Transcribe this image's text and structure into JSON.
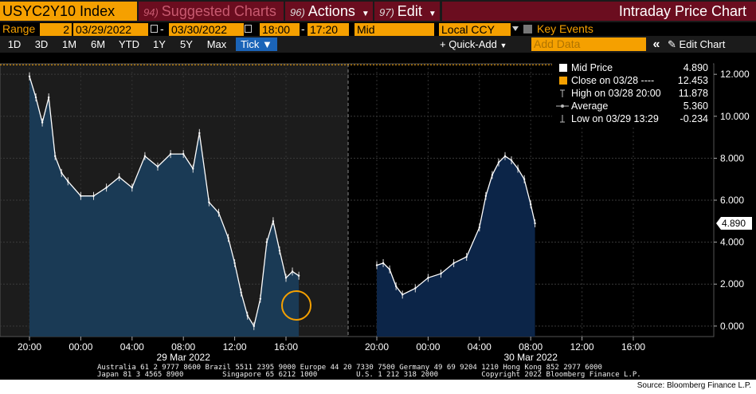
{
  "toolbar": {
    "ticker": "USYC2Y10 Index",
    "suggested": {
      "num": "94)",
      "label": "Suggested Charts"
    },
    "actions": {
      "num": "96)",
      "label": "Actions"
    },
    "edit": {
      "num": "97)",
      "label": "Edit"
    },
    "title": "Intraday Price Chart"
  },
  "range_row": {
    "range_label": "Range",
    "range_value": "2",
    "start_date": "03/29/2022",
    "dash": "-",
    "end_date": "03/30/2022",
    "start_time": "18:00",
    "end_time": "17:20",
    "field": "Mid",
    "currency": "Local CCY",
    "key_events": "Key Events"
  },
  "range_buttons": [
    "1D",
    "3D",
    "1M",
    "6M",
    "YTD",
    "1Y",
    "5Y",
    "Max"
  ],
  "tick_button": "Tick ▼",
  "quick_add": "+ Quick-Add",
  "add_data_placeholder": "Add Data",
  "collapse_icon": "«",
  "edit_chart": "Edit Chart",
  "legend": [
    {
      "label": "Mid Price",
      "value": "4.890",
      "color": "#ffffff"
    },
    {
      "label": "Close on 03/28 ---- ",
      "value": "12.453",
      "color": "#f5a000"
    },
    {
      "label": "High on 03/28 20:00",
      "value": "11.878",
      "icon": "high-marker-icon"
    },
    {
      "label": "Average",
      "value": "5.360",
      "icon": "average-marker-icon"
    },
    {
      "label": "Low on 03/29 13:29",
      "value": "-0.234",
      "icon": "low-marker-icon"
    }
  ],
  "current_price_label": "4.890",
  "footer": {
    "line1": "Australia 61 2 9777 8600 Brazil 5511 2395 9000 Europe 44 20 7330 7500 Germany 49 69 9204 1210 Hong Kong 852 2977 6000",
    "line2": "Japan 81 3 4565 8900         Singapore 65 6212 1000         U.S. 1 212 318 2000          Copyright 2022 Bloomberg Finance L.P.",
    "source": "Source: Bloomberg Finance L.P."
  },
  "chart_data": {
    "type": "line",
    "y_ticks": [
      "12.000",
      "10.000",
      "8.000",
      "6.000",
      "4.000",
      "2.000",
      "0.000"
    ],
    "ylim": [
      -0.5,
      12.5
    ],
    "x_ticks": [
      "20:00",
      "00:00",
      "04:00",
      "08:00",
      "12:00",
      "16:00",
      "20:00",
      "00:00",
      "04:00",
      "08:00",
      "12:00",
      "16:00"
    ],
    "date_labels": [
      "29 Mar 2022",
      "30 Mar 2022"
    ],
    "previous_close": 12.453,
    "series": [
      {
        "name": "Mid Price",
        "session": 1,
        "x": [
          "20:00",
          "20:30",
          "21:00",
          "21:30",
          "22:00",
          "22:30",
          "23:00",
          "00:00",
          "01:00",
          "02:00",
          "03:00",
          "04:00",
          "05:00",
          "06:00",
          "07:00",
          "08:00",
          "08:45",
          "09:15",
          "10:00",
          "10:45",
          "11:30",
          "12:00",
          "12:30",
          "13:00",
          "13:30",
          "14:00",
          "14:30",
          "15:00",
          "15:30",
          "16:00",
          "16:30",
          "17:00"
        ],
        "values": [
          11.9,
          10.9,
          9.7,
          10.9,
          8.1,
          7.3,
          6.9,
          6.2,
          6.2,
          6.6,
          7.1,
          6.6,
          8.1,
          7.6,
          8.2,
          8.2,
          7.5,
          9.2,
          5.9,
          5.4,
          4.2,
          3.0,
          1.6,
          0.5,
          0.0,
          1.3,
          4.0,
          5.0,
          3.6,
          2.3,
          2.6,
          2.4
        ]
      },
      {
        "name": "Mid Price",
        "session": 2,
        "x": [
          "20:00",
          "20:30",
          "21:00",
          "21:30",
          "22:00",
          "23:00",
          "00:00",
          "01:00",
          "02:00",
          "03:00",
          "04:00",
          "04:30",
          "05:00",
          "05:30",
          "06:00",
          "06:30",
          "07:00",
          "07:30",
          "08:00",
          "08:20"
        ],
        "values": [
          2.9,
          3.0,
          2.7,
          1.9,
          1.5,
          1.8,
          2.3,
          2.5,
          3.0,
          3.3,
          4.7,
          6.2,
          7.2,
          7.8,
          8.1,
          7.9,
          7.5,
          7.0,
          5.8,
          4.9
        ]
      }
    ]
  }
}
